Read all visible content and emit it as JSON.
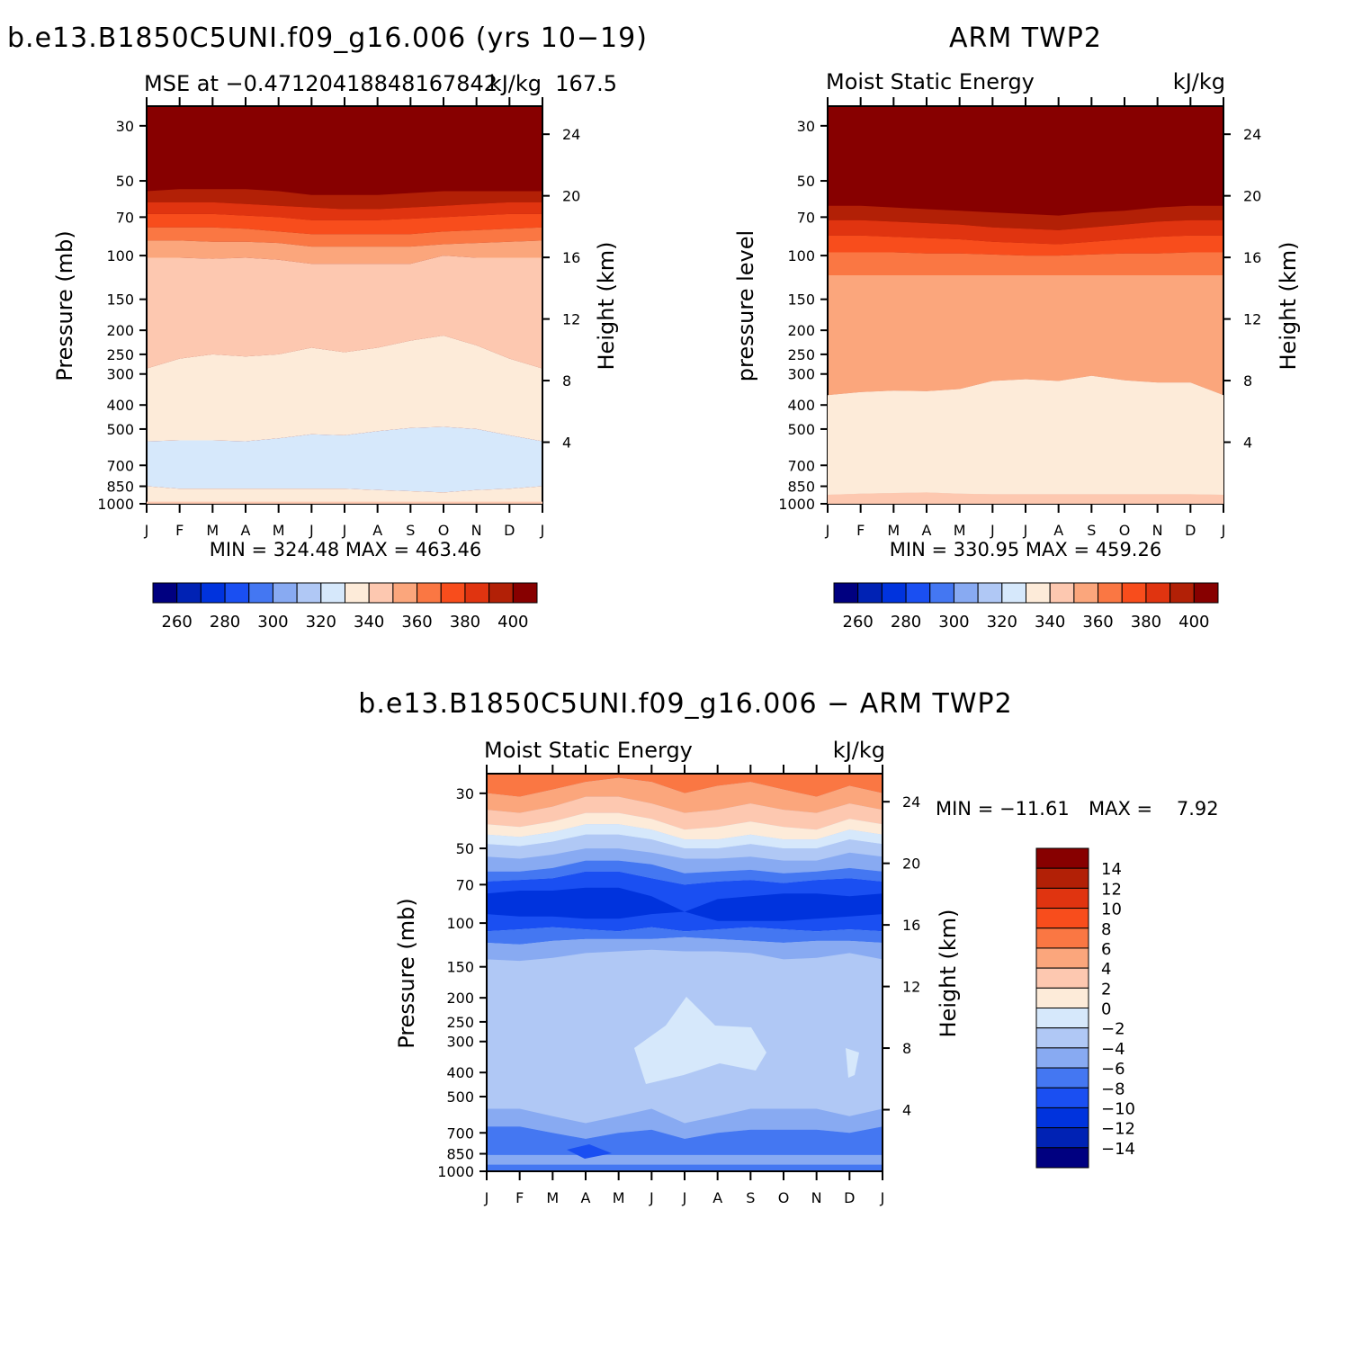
{
  "colors": {
    "abs_levels": [
      "#000080",
      "#0022b4",
      "#0033dd",
      "#1a4ff2",
      "#4477f2",
      "#88aaf2",
      "#b0c8f5",
      "#d6e8fb",
      "#fdebd9",
      "#fdc8b0",
      "#fba67c",
      "#fa7743",
      "#f84d1c",
      "#e03410",
      "#b22006",
      "#870000"
    ],
    "diff_levels": [
      "#000080",
      "#0022b4",
      "#0033dd",
      "#1a4ff2",
      "#4477f2",
      "#88aaf2",
      "#b0c8f5",
      "#d6e8fb",
      "#fdebd9",
      "#fdc8b0",
      "#fba67c",
      "#fa7743",
      "#f84d1c",
      "#e03410",
      "#b22006",
      "#870000"
    ]
  },
  "panels": {
    "model": {
      "title": "b.e13.B1850C5UNI.f09_g16.006 (yrs 10−19)",
      "left_string": "MSE at −0.47120418848167842",
      "right_string": "kJ/kg",
      "center_string": "167.5",
      "ylabel": "Pressure (mb)",
      "ylabel_right": "Height (km)",
      "stats": "MIN = 324.48 MAX = 463.46"
    },
    "obs": {
      "title": "ARM TWP2",
      "left_string": "Moist Static Energy",
      "right_string": "kJ/kg",
      "ylabel": "pressure level",
      "ylabel_right": "Height (km)",
      "stats": "MIN = 330.95 MAX = 459.26"
    },
    "diff": {
      "title": "b.e13.B1850C5UNI.f09_g16.006 − ARM TWP2",
      "left_string": "Moist Static Energy",
      "right_string": "kJ/kg",
      "ylabel": "Pressure (mb)",
      "ylabel_right": "Height (km)",
      "stats_min": "MIN = −11.61",
      "stats_max": "MAX =    7.92"
    }
  },
  "chart_data": [
    {
      "type": "heatmap",
      "name": "model",
      "x": [
        "J",
        "F",
        "M",
        "A",
        "M",
        "J",
        "J",
        "A",
        "S",
        "O",
        "N",
        "D",
        "J"
      ],
      "y_pressure_ticks": [
        30,
        50,
        70,
        100,
        150,
        200,
        250,
        300,
        400,
        500,
        700,
        850,
        1000
      ],
      "y_height_ticks": [
        4,
        8,
        12,
        16,
        20,
        24
      ],
      "ylim_pressure": [
        1000,
        25
      ],
      "colorbar": {
        "labels": [
          260,
          280,
          300,
          320,
          340,
          360,
          380,
          400
        ]
      },
      "contour_boundaries_hPa": {
        "320": [
          850,
          870,
          870,
          870,
          870,
          870,
          870,
          880,
          890,
          900,
          880,
          870,
          850
        ],
        "330": [
          560,
          555,
          555,
          560,
          545,
          525,
          530,
          510,
          495,
          490,
          500,
          530,
          560
        ],
        "340": [
          285,
          260,
          250,
          255,
          250,
          235,
          245,
          235,
          220,
          210,
          230,
          260,
          285
        ],
        "350": [
          102,
          102,
          103,
          102,
          104,
          108,
          108,
          108,
          108,
          100,
          102,
          102,
          102
        ],
        "360": [
          87,
          87,
          88,
          88,
          89,
          92,
          92,
          92,
          92,
          90,
          89,
          88,
          87
        ],
        "370": [
          77,
          77,
          77,
          78,
          80,
          82,
          82,
          82,
          82,
          80,
          79,
          78,
          77
        ],
        "380": [
          68,
          68,
          68,
          69,
          70,
          72,
          72,
          72,
          71,
          70,
          69,
          68,
          68
        ],
        "390": [
          61,
          61,
          61,
          62,
          63,
          64,
          65,
          65,
          64,
          63,
          62,
          61,
          61
        ],
        "400": [
          55,
          54,
          54,
          54,
          55,
          57,
          57,
          57,
          56,
          55,
          55,
          55,
          55
        ]
      },
      "min": 324.48,
      "max": 463.46
    },
    {
      "type": "heatmap",
      "name": "obs",
      "x": [
        "J",
        "F",
        "M",
        "A",
        "M",
        "J",
        "J",
        "A",
        "S",
        "O",
        "N",
        "D",
        "J"
      ],
      "y_pressure_ticks": [
        30,
        50,
        70,
        100,
        150,
        200,
        250,
        300,
        400,
        500,
        700,
        850,
        1000
      ],
      "y_height_ticks": [
        4,
        8,
        12,
        16,
        20,
        24
      ],
      "ylim_pressure": [
        1000,
        25
      ],
      "colorbar": {
        "labels": [
          260,
          280,
          300,
          320,
          340,
          360,
          380,
          400
        ]
      },
      "contour_boundaries_hPa": {
        "340": [
          920,
          910,
          905,
          900,
          910,
          915,
          915,
          915,
          915,
          915,
          915,
          915,
          920
        ],
        "350": [
          365,
          355,
          350,
          352,
          345,
          320,
          315,
          320,
          305,
          318,
          325,
          325,
          365
        ],
        "360": [
          120,
          120,
          120,
          120,
          120,
          120,
          120,
          120,
          120,
          120,
          120,
          120,
          120
        ],
        "370": [
          97,
          97,
          97,
          98,
          98,
          99,
          100,
          100,
          99,
          98,
          98,
          97,
          97
        ],
        "380": [
          83,
          83,
          84,
          85,
          86,
          88,
          89,
          90,
          88,
          86,
          84,
          83,
          83
        ],
        "390": [
          72,
          72,
          73,
          74,
          75,
          77,
          78,
          79,
          77,
          75,
          73,
          72,
          72
        ],
        "400": [
          63,
          63,
          64,
          65,
          66,
          67,
          68,
          69,
          67,
          66,
          64,
          63,
          63
        ]
      },
      "min": 330.95,
      "max": 459.26
    },
    {
      "type": "heatmap",
      "name": "diff",
      "x": [
        "J",
        "F",
        "M",
        "A",
        "M",
        "J",
        "J",
        "A",
        "S",
        "O",
        "N",
        "D",
        "J"
      ],
      "y_pressure_ticks": [
        30,
        50,
        70,
        100,
        150,
        200,
        250,
        300,
        400,
        500,
        700,
        850,
        1000
      ],
      "y_height_ticks": [
        4,
        8,
        12,
        16,
        20,
        24
      ],
      "ylim_pressure": [
        1000,
        25
      ],
      "colorbar": {
        "labels": [
          14,
          12,
          10,
          8,
          6,
          4,
          2,
          0,
          -2,
          -4,
          -6,
          -8,
          -10,
          -12,
          -14
        ]
      },
      "features": {
        "upper_positive_band_hPa": [
          25,
          45
        ],
        "negative_core_hPa": [
          70,
          100
        ],
        "mid_minus2_patch_months": [
          "J",
          "A",
          "S"
        ],
        "min": -11.61,
        "max": 7.92
      }
    }
  ]
}
